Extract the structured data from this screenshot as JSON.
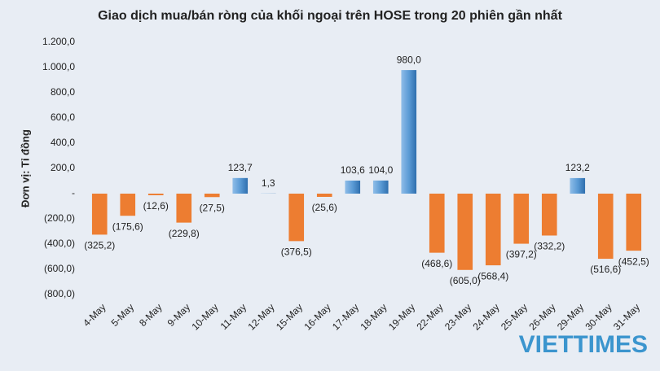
{
  "chart_data": {
    "type": "bar",
    "title": "Giao dịch mua/bán ròng của khối ngoại trên HOSE trong 20 phiên gần nhất",
    "y_label": "Đơn vị: Tỉ đồng",
    "categories": [
      "4-May",
      "5-May",
      "8-May",
      "9-May",
      "10-May",
      "11-May",
      "12-May",
      "15-May",
      "16-May",
      "17-May",
      "18-May",
      "19-May",
      "22-May",
      "23-May",
      "24-May",
      "25-May",
      "26-May",
      "29-May",
      "30-May",
      "31-May"
    ],
    "values": [
      -325.2,
      -175.6,
      -12.6,
      -229.8,
      -27.5,
      123.7,
      1.3,
      -376.5,
      -25.6,
      103.6,
      104.0,
      980.0,
      -468.6,
      -605.0,
      -568.4,
      -397.2,
      -332.2,
      123.2,
      -516.6,
      -452.5
    ],
    "value_labels": [
      "(325,2)",
      "(175,6)",
      "(12,6)",
      "(229,8)",
      "(27,5)",
      "123,7",
      "1,3",
      "(376,5)",
      "(25,6)",
      "103,6",
      "104,0",
      "980,0",
      "(468,6)",
      "(605,0)",
      "(568,4)",
      "(397,2)",
      "(332,2)",
      "123,2",
      "(516,6)",
      "(452,5)"
    ],
    "positive_color": "#5b9bd5",
    "negative_color": "#ed7d31",
    "ylim": [
      -800,
      1200
    ],
    "yticks": [
      {
        "value": -800,
        "label": "(800,0)"
      },
      {
        "value": -600,
        "label": "(600,0)"
      },
      {
        "value": -400,
        "label": "(400,0)"
      },
      {
        "value": -200,
        "label": "(200,0)"
      },
      {
        "value": 0,
        "label": "-"
      },
      {
        "value": 200,
        "label": "200,0"
      },
      {
        "value": 400,
        "label": "400,0"
      },
      {
        "value": 600,
        "label": "600,0"
      },
      {
        "value": 800,
        "label": "800,0"
      },
      {
        "value": 1000,
        "label": "1.000,0"
      },
      {
        "value": 1200,
        "label": "1.200,0"
      }
    ],
    "watermark": "VIETTIMES"
  }
}
